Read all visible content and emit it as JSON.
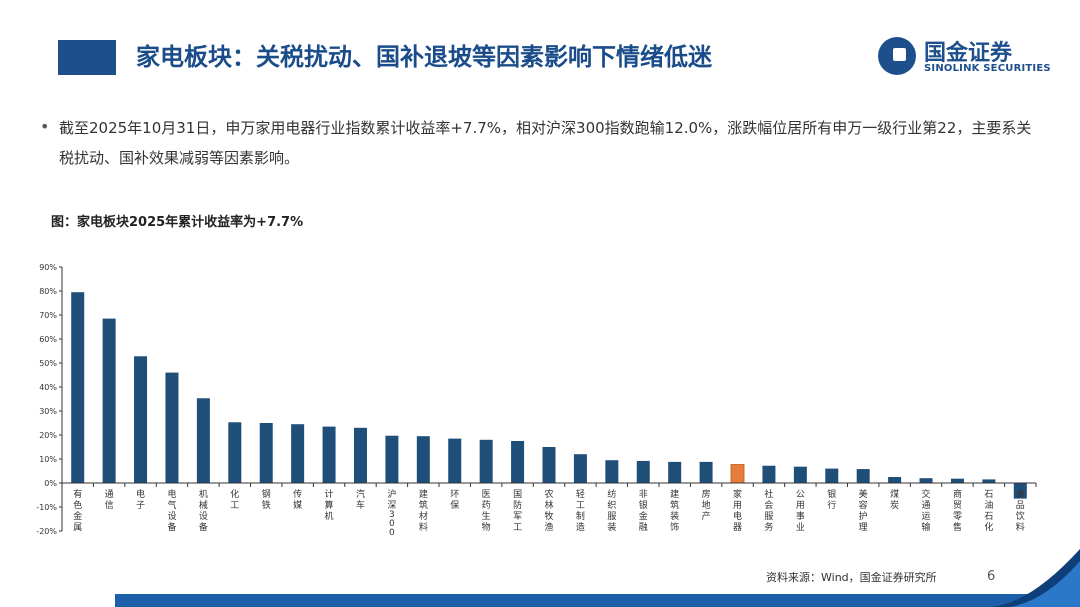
{
  "header": {
    "title": "家电板块：关税扰动、国补退坡等因素影响下情绪低迷",
    "logo_cn": "国金证券",
    "logo_en": "SINOLINK SECURITIES"
  },
  "bullet": {
    "text": "截至2025年10月31日，申万家用电器行业指数累计收益率+7.7%，相对沪深300指数跑输12.0%，涨跌幅位居所有申万一级行业第22，主要系关税扰动、国补效果减弱等因素影响。"
  },
  "footer": {
    "source": "资料来源：Wind，国金证券研究所",
    "page_number": "6"
  },
  "colors": {
    "bar": "#1f4e79",
    "highlight": "#e87c3a",
    "brand": "#1d4f8c"
  },
  "chart_data": {
    "type": "bar",
    "title": "图：家电板块2025年累计收益率为+7.7%",
    "xlabel": "",
    "ylabel": "",
    "ylim": [
      -20,
      90
    ],
    "yticks": [
      -20,
      -10,
      0,
      10,
      20,
      30,
      40,
      50,
      60,
      70,
      80,
      90
    ],
    "ytick_labels": [
      "-20%",
      "-10%",
      "0%",
      "10%",
      "20%",
      "30%",
      "40%",
      "50%",
      "60%",
      "70%",
      "80%",
      "90%"
    ],
    "highlight_category": "家用电器",
    "categories": [
      "有色金属",
      "通信",
      "电子",
      "电气设备",
      "机械设备",
      "化工",
      "钢铁",
      "传媒",
      "计算机",
      "汽车",
      "沪深300",
      "建筑材料",
      "环保",
      "医药生物",
      "国防军工",
      "农林牧渔",
      "轻工制造",
      "纺织服装",
      "非银金融",
      "建筑装饰",
      "房地产",
      "家用电器",
      "社会服务",
      "公用事业",
      "银行",
      "美容护理",
      "煤炭",
      "交通运输",
      "商贸零售",
      "石油石化",
      "食品饮料"
    ],
    "values": [
      79.5,
      68.5,
      52.8,
      46.0,
      35.3,
      25.3,
      25.0,
      24.5,
      23.5,
      23.0,
      19.7,
      19.5,
      18.5,
      18.0,
      17.5,
      15.0,
      12.0,
      9.5,
      9.2,
      8.8,
      8.8,
      7.7,
      7.2,
      6.8,
      6.0,
      5.8,
      2.5,
      2.0,
      1.8,
      1.5,
      -6.5
    ]
  }
}
